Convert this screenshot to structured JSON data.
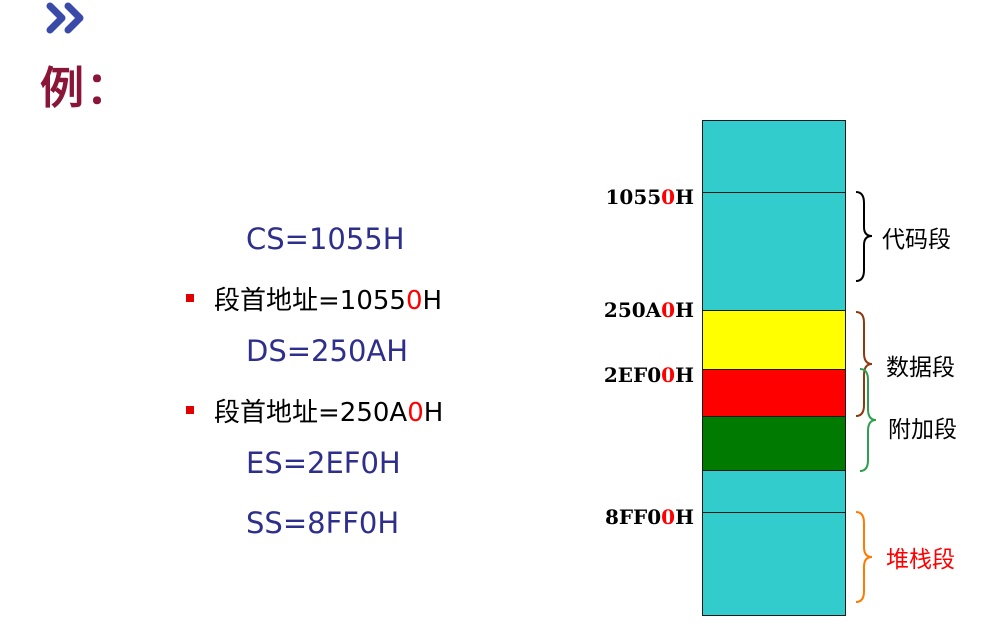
{
  "header": {
    "logo_icon": "double-chevron-right-icon",
    "title": "例："
  },
  "registers": [
    {
      "text": "CS=1055H"
    },
    {
      "prefix": "段首地址=1055",
      "digit": "0",
      "suffix": "H"
    },
    {
      "text": "DS=250AH"
    },
    {
      "prefix": "段首地址=250A",
      "digit": "0",
      "suffix": "H"
    },
    {
      "text": "ES=2EF0H"
    },
    {
      "text": "SS=8FF0H"
    }
  ],
  "memory": {
    "address_labels": [
      {
        "prefix": "1055",
        "digit": "0",
        "suffix": "H"
      },
      {
        "prefix": "250A",
        "digit": "0",
        "suffix": "H"
      },
      {
        "prefix": "2EF0",
        "digit": "0",
        "suffix": "H"
      },
      {
        "prefix": "8FF0",
        "digit": "0",
        "suffix": "H"
      }
    ],
    "colors": {
      "cyan": "#33cccc",
      "yellow": "#ffff00",
      "red": "#ff0000",
      "green": "#007a00"
    },
    "segments": [
      {
        "label": "代码段",
        "color": "#000000",
        "brace_color": "#000000"
      },
      {
        "label": "数据段",
        "color": "#000000",
        "brace_color": "#8b3a10"
      },
      {
        "label": "附加段",
        "color": "#000000",
        "brace_color": "#2e9e50"
      },
      {
        "label": "堆栈段",
        "color": "#ff0000",
        "brace_color": "#ff7a00"
      }
    ]
  }
}
